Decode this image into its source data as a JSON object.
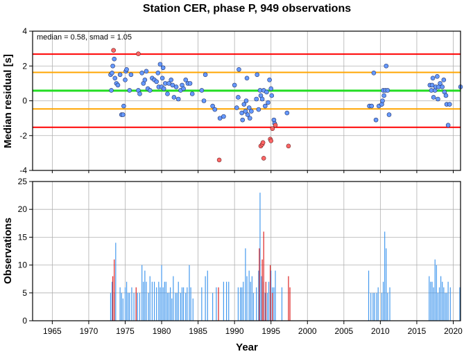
{
  "chart_data": [
    {
      "type": "scatter",
      "title": "Station CER, phase P, 949 observations",
      "ylabel": "Median residual [s]",
      "annotation": "median = 0.58, smad = 1.05",
      "xlim": [
        1962.3,
        2021.0
      ],
      "ylim": [
        -4,
        4
      ],
      "yticks": [
        -4,
        -2,
        0,
        2,
        4
      ],
      "grid": true,
      "colors": {
        "median_line": "#22dd22",
        "one_smad": "#ffa500",
        "two_smad": "#ff0000",
        "point_normal": "#6699ff",
        "point_outlier": "#ff6666"
      },
      "reference_lines": [
        {
          "name": "median",
          "y": 0.58
        },
        {
          "name": "median-1smad",
          "y": -0.47
        },
        {
          "name": "median+1smad",
          "y": 1.63
        },
        {
          "name": "median-2smad",
          "y": -1.52
        },
        {
          "name": "median+2smad",
          "y": 2.68
        }
      ],
      "points_normal": [
        [
          1973.0,
          1.5
        ],
        [
          1973.1,
          0.6
        ],
        [
          1973.2,
          1.6
        ],
        [
          1973.3,
          2.0
        ],
        [
          1973.5,
          2.4
        ],
        [
          1973.6,
          1.3
        ],
        [
          1973.8,
          1.0
        ],
        [
          1974.0,
          0.9
        ],
        [
          1974.3,
          1.5
        ],
        [
          1974.5,
          -0.8
        ],
        [
          1974.7,
          -0.8
        ],
        [
          1974.8,
          -0.3
        ],
        [
          1975.0,
          1.2
        ],
        [
          1975.1,
          1.7
        ],
        [
          1975.2,
          1.8
        ],
        [
          1975.6,
          0.6
        ],
        [
          1975.8,
          1.5
        ],
        [
          1976.8,
          0.6
        ],
        [
          1977.0,
          0.4
        ],
        [
          1977.3,
          1.6
        ],
        [
          1977.5,
          1.0
        ],
        [
          1977.7,
          1.2
        ],
        [
          1977.9,
          1.7
        ],
        [
          1978.1,
          0.7
        ],
        [
          1978.4,
          0.6
        ],
        [
          1978.7,
          1.3
        ],
        [
          1979.0,
          1.2
        ],
        [
          1979.3,
          1.1
        ],
        [
          1979.5,
          1.6
        ],
        [
          1979.6,
          0.8
        ],
        [
          1979.8,
          2.1
        ],
        [
          1980.0,
          0.8
        ],
        [
          1980.1,
          1.3
        ],
        [
          1980.2,
          1.9
        ],
        [
          1980.3,
          0.7
        ],
        [
          1980.5,
          1.0
        ],
        [
          1980.8,
          0.4
        ],
        [
          1981.0,
          1.0
        ],
        [
          1981.3,
          1.2
        ],
        [
          1981.5,
          0.9
        ],
        [
          1981.7,
          0.2
        ],
        [
          1982.0,
          0.8
        ],
        [
          1982.3,
          0.1
        ],
        [
          1982.6,
          0.6
        ],
        [
          1982.8,
          0.9
        ],
        [
          1983.0,
          0.7
        ],
        [
          1983.3,
          1.2
        ],
        [
          1983.6,
          1.0
        ],
        [
          1983.9,
          1.0
        ],
        [
          1984.2,
          0.4
        ],
        [
          1985.5,
          0.6
        ],
        [
          1985.8,
          0.0
        ],
        [
          1986.0,
          1.5
        ],
        [
          1987.0,
          -0.3
        ],
        [
          1987.3,
          -0.5
        ],
        [
          1988.0,
          -1.0
        ],
        [
          1988.5,
          -0.9
        ],
        [
          1990.0,
          0.9
        ],
        [
          1990.3,
          -0.4
        ],
        [
          1990.5,
          0.2
        ],
        [
          1990.6,
          1.8
        ],
        [
          1991.0,
          -0.7
        ],
        [
          1991.1,
          -1.1
        ],
        [
          1991.3,
          -0.2
        ],
        [
          1991.5,
          -0.6
        ],
        [
          1991.6,
          0.0
        ],
        [
          1991.7,
          1.3
        ],
        [
          1991.8,
          -0.8
        ],
        [
          1992.0,
          -0.4
        ],
        [
          1992.1,
          -1.0
        ],
        [
          1992.3,
          -0.6
        ],
        [
          1993.0,
          0.1
        ],
        [
          1993.1,
          1.5
        ],
        [
          1993.3,
          -0.5
        ],
        [
          1993.5,
          0.6
        ],
        [
          1993.6,
          0.3
        ],
        [
          1993.8,
          0.1
        ],
        [
          1994.0,
          0.6
        ],
        [
          1994.2,
          -0.3
        ],
        [
          1994.4,
          0.5
        ],
        [
          1994.6,
          -0.1
        ],
        [
          1994.8,
          1.2
        ],
        [
          1995.0,
          0.7
        ],
        [
          1995.1,
          0.3
        ],
        [
          1995.4,
          -1.1
        ],
        [
          1995.5,
          -1.3
        ],
        [
          1997.2,
          -0.7
        ],
        [
          2008.5,
          -0.3
        ],
        [
          2008.8,
          -0.3
        ],
        [
          2009.1,
          1.6
        ],
        [
          2009.4,
          -1.1
        ],
        [
          2009.8,
          -0.3
        ],
        [
          2010.2,
          -0.2
        ],
        [
          2010.3,
          0.0
        ],
        [
          2010.4,
          0.6
        ],
        [
          2010.5,
          0.3
        ],
        [
          2010.7,
          0.6
        ],
        [
          2010.8,
          2.0
        ],
        [
          2011.0,
          0.6
        ],
        [
          2011.2,
          -0.8
        ],
        [
          2016.8,
          0.9
        ],
        [
          2017.0,
          0.6
        ],
        [
          2017.1,
          0.9
        ],
        [
          2017.2,
          1.3
        ],
        [
          2017.3,
          0.2
        ],
        [
          2017.5,
          0.6
        ],
        [
          2017.6,
          0.8
        ],
        [
          2017.8,
          1.4
        ],
        [
          2017.9,
          0.1
        ],
        [
          2018.0,
          0.8
        ],
        [
          2018.2,
          1.0
        ],
        [
          2018.5,
          0.8
        ],
        [
          2018.7,
          1.2
        ],
        [
          2018.8,
          0.5
        ],
        [
          2019.0,
          0.3
        ],
        [
          2019.1,
          -0.2
        ],
        [
          2019.3,
          -1.4
        ],
        [
          2019.5,
          -0.2
        ],
        [
          2021.0,
          0.8
        ]
      ],
      "points_outlier": [
        [
          1973.4,
          2.9
        ],
        [
          1976.8,
          2.7
        ],
        [
          1987.9,
          -3.4
        ],
        [
          1993.6,
          -2.6
        ],
        [
          1993.8,
          -2.5
        ],
        [
          1993.9,
          -2.4
        ],
        [
          1994.0,
          -3.3
        ],
        [
          1994.9,
          -2.2
        ],
        [
          1995.0,
          -2.3
        ],
        [
          1995.2,
          -1.6
        ],
        [
          1995.6,
          -1.4
        ],
        [
          1997.4,
          -2.6
        ]
      ]
    },
    {
      "type": "bar",
      "xlabel": "Year",
      "ylabel": "Observations",
      "xlim": [
        1962.3,
        2021.0
      ],
      "ylim": [
        0,
        25
      ],
      "yticks": [
        0,
        5,
        10,
        15,
        20,
        25
      ],
      "xticks": [
        1965,
        1970,
        1975,
        1980,
        1985,
        1990,
        1995,
        2000,
        2005,
        2010,
        2015,
        2020
      ],
      "grid": true,
      "colors": {
        "normal": "#4499ee",
        "outlier": "#dd2222"
      },
      "bars_normal": [
        [
          1973.0,
          5
        ],
        [
          1973.2,
          7
        ],
        [
          1973.5,
          5
        ],
        [
          1973.7,
          14
        ],
        [
          1974.3,
          6
        ],
        [
          1974.5,
          5
        ],
        [
          1974.7,
          4
        ],
        [
          1975.0,
          6
        ],
        [
          1975.2,
          7
        ],
        [
          1975.4,
          5
        ],
        [
          1975.6,
          5
        ],
        [
          1975.9,
          6
        ],
        [
          1976.2,
          5
        ],
        [
          1976.5,
          5
        ],
        [
          1976.7,
          5
        ],
        [
          1977.0,
          5
        ],
        [
          1977.3,
          10
        ],
        [
          1977.5,
          7
        ],
        [
          1977.7,
          9
        ],
        [
          1977.9,
          7
        ],
        [
          1978.2,
          5
        ],
        [
          1978.4,
          8
        ],
        [
          1978.7,
          7
        ],
        [
          1979.0,
          7
        ],
        [
          1979.3,
          6
        ],
        [
          1979.6,
          7
        ],
        [
          1979.8,
          6
        ],
        [
          1980.0,
          10
        ],
        [
          1980.2,
          6
        ],
        [
          1980.4,
          7
        ],
        [
          1980.6,
          7
        ],
        [
          1980.8,
          5
        ],
        [
          1981.0,
          5
        ],
        [
          1981.2,
          6
        ],
        [
          1981.4,
          4
        ],
        [
          1981.6,
          8
        ],
        [
          1981.9,
          5
        ],
        [
          1982.1,
          5
        ],
        [
          1982.3,
          7
        ],
        [
          1982.6,
          5
        ],
        [
          1982.8,
          6
        ],
        [
          1983.0,
          6
        ],
        [
          1983.3,
          5
        ],
        [
          1983.5,
          6
        ],
        [
          1983.8,
          10
        ],
        [
          1984.0,
          6
        ],
        [
          1984.3,
          4
        ],
        [
          1985.5,
          6
        ],
        [
          1986.0,
          8
        ],
        [
          1986.3,
          9
        ],
        [
          1987.0,
          5
        ],
        [
          1987.5,
          6
        ],
        [
          1988.5,
          7
        ],
        [
          1988.9,
          7
        ],
        [
          1989.2,
          7
        ],
        [
          1990.5,
          6
        ],
        [
          1990.8,
          6
        ],
        [
          1991.0,
          6
        ],
        [
          1991.2,
          7
        ],
        [
          1991.5,
          13
        ],
        [
          1991.7,
          8
        ],
        [
          1992.0,
          9
        ],
        [
          1992.2,
          7
        ],
        [
          1992.4,
          8
        ],
        [
          1992.6,
          5
        ],
        [
          1993.0,
          6
        ],
        [
          1993.3,
          9
        ],
        [
          1993.5,
          23
        ],
        [
          1993.7,
          8
        ],
        [
          1994.0,
          7
        ],
        [
          1994.2,
          5
        ],
        [
          1994.5,
          5
        ],
        [
          1994.7,
          7
        ],
        [
          1995.0,
          9
        ],
        [
          1995.2,
          6
        ],
        [
          1995.4,
          6
        ],
        [
          1995.6,
          9
        ],
        [
          1996.5,
          6
        ],
        [
          2008.4,
          9
        ],
        [
          2008.7,
          5
        ],
        [
          2009.0,
          5
        ],
        [
          2009.2,
          5
        ],
        [
          2009.5,
          5
        ],
        [
          2009.7,
          6
        ],
        [
          2010.2,
          5
        ],
        [
          2010.4,
          7
        ],
        [
          2010.6,
          16
        ],
        [
          2010.8,
          13
        ],
        [
          2011.0,
          5
        ],
        [
          2011.3,
          6
        ],
        [
          2016.7,
          8
        ],
        [
          2016.9,
          7
        ],
        [
          2017.1,
          7
        ],
        [
          2017.3,
          6
        ],
        [
          2017.5,
          11
        ],
        [
          2017.7,
          10
        ],
        [
          2017.9,
          5
        ],
        [
          2018.1,
          6
        ],
        [
          2018.3,
          8
        ],
        [
          2018.5,
          7
        ],
        [
          2018.7,
          6
        ],
        [
          2018.9,
          5
        ],
        [
          2019.1,
          5
        ],
        [
          2019.3,
          7
        ],
        [
          2019.6,
          6
        ],
        [
          2020.9,
          6
        ]
      ],
      "bars_outlier": [
        [
          1973.3,
          8
        ],
        [
          1973.5,
          11
        ],
        [
          1976.5,
          6
        ],
        [
          1987.8,
          6
        ],
        [
          1993.4,
          13
        ],
        [
          1993.8,
          11
        ],
        [
          1994.0,
          16
        ],
        [
          1994.3,
          7
        ],
        [
          1994.9,
          10
        ],
        [
          1995.2,
          5
        ],
        [
          1997.4,
          8
        ],
        [
          1997.6,
          6
        ]
      ]
    }
  ]
}
